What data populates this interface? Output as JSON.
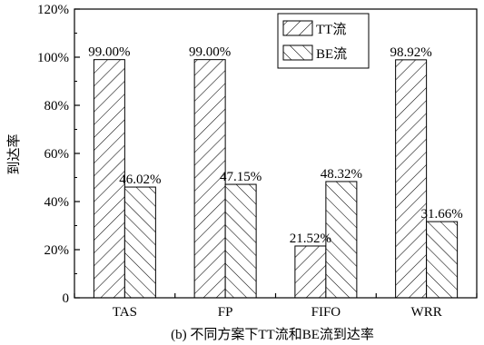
{
  "chart_data": {
    "type": "bar",
    "categories": [
      "TAS",
      "FP",
      "FIFO",
      "WRR"
    ],
    "series": [
      {
        "name": "TT流",
        "values": [
          99.0,
          99.0,
          21.52,
          98.92
        ],
        "labels": [
          "99.00%",
          "99.00%",
          "21.52%",
          "98.92%"
        ],
        "pattern": "forward-hatch"
      },
      {
        "name": "BE流",
        "values": [
          46.02,
          47.15,
          48.32,
          31.66
        ],
        "labels": [
          "46.02%",
          "47.15%",
          "48.32%",
          "31.66%"
        ],
        "pattern": "back-hatch"
      }
    ],
    "ylabel": "到达率",
    "ylim": [
      0,
      120
    ],
    "yticks": [
      0,
      20,
      40,
      60,
      80,
      100,
      120
    ],
    "ytick_labels": [
      "0",
      "20%",
      "40%",
      "60%",
      "80%",
      "100%",
      "120%"
    ],
    "legend_position": "top-center",
    "grid": false,
    "caption": "(b) 不同方案下TT流和BE流到达率"
  }
}
